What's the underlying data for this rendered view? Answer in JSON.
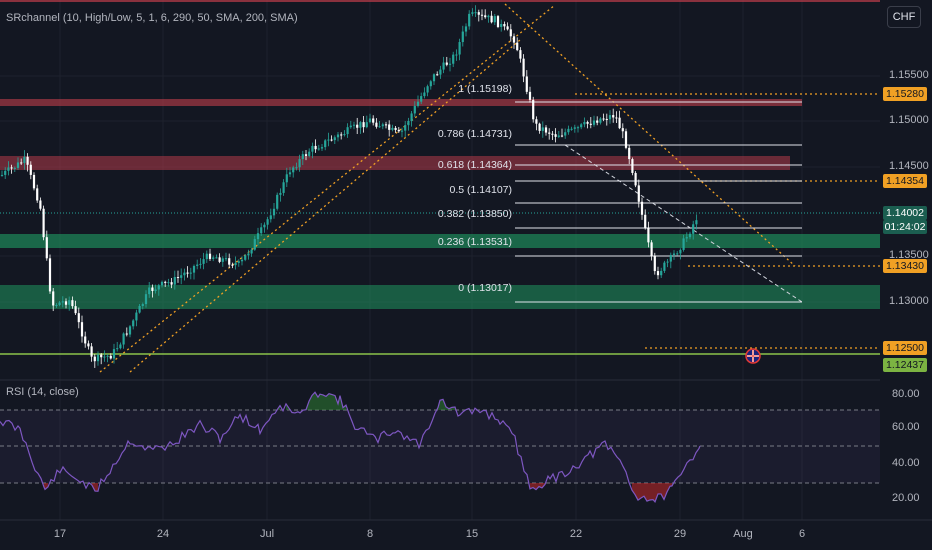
{
  "indicator_label": "SRchannel (10, High/Low, 5, 1, 6, 290, 50, SMA, 200, SMA)",
  "rsi_label": "RSI (14, close)",
  "currency": "CHF",
  "price_axis": [
    "1.15500",
    "1.15000",
    "1.14500",
    "1.13500",
    "1.13000"
  ],
  "rsi_axis": [
    "80.00",
    "60.00",
    "40.00",
    "20.00"
  ],
  "time_axis": [
    "17",
    "24",
    "Jul",
    "8",
    "15",
    "22",
    "29",
    "Aug",
    "6"
  ],
  "fib_labels": [
    "1 (1.15198)",
    "0.786 (1.14731)",
    "0.618 (1.14364)",
    "0.5 (1.14107)",
    "0.382 (1.13850)",
    "0.236 (1.13531)",
    "0 (1.13017)"
  ],
  "price_tags": {
    "p15280": "1.15280",
    "p14354": "1.14354",
    "current": "1.14002",
    "countdown": "01:24:02",
    "p13430": "1.13430",
    "p12500": "1.12500",
    "p12437": "1.12437"
  },
  "colors": {
    "background": "#131722",
    "up": "#26a69a",
    "down": "#ffffff",
    "resistance_zone": "#b23a48",
    "support_zone": "#1e8a5a",
    "rsi_line": "#7e57c2",
    "orange": "#f0a024"
  },
  "chart_data": {
    "type": "candlestick",
    "series": [
      {
        "name": "price",
        "x": [
          "17",
          "24",
          "Jul",
          "8",
          "15",
          "22",
          "29"
        ],
        "values": [
          1.144,
          1.132,
          1.141,
          1.149,
          1.1575,
          1.148,
          1.14
        ]
      }
    ],
    "rsi": {
      "ylim": [
        15,
        85
      ],
      "levels": [
        70,
        50,
        30
      ]
    }
  }
}
